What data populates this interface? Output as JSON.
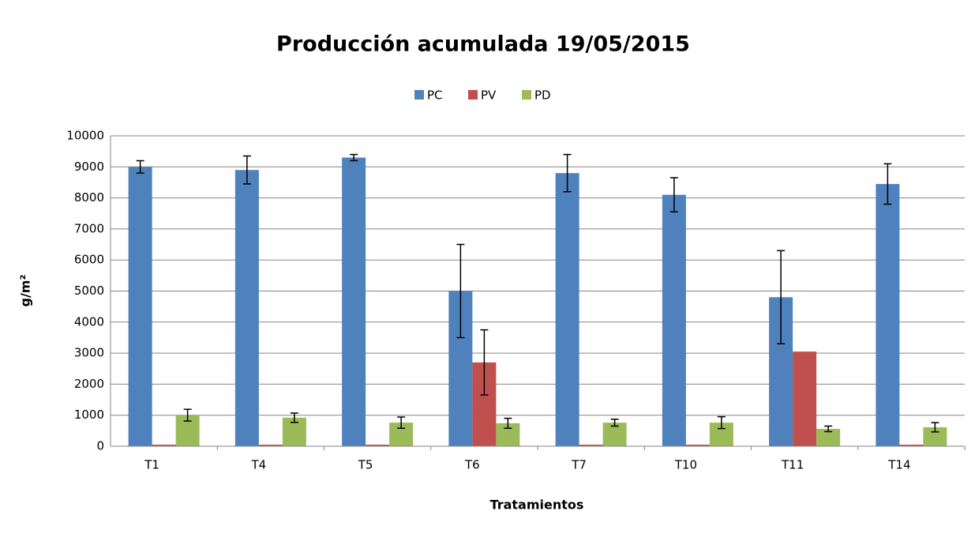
{
  "chart_data": {
    "type": "bar",
    "title": "Producción acumulada 19/05/2015",
    "x_label": "Tratamientos",
    "y_label": "g/m²",
    "categories": [
      "T1",
      "T4",
      "T5",
      "T6",
      "T7",
      "T10",
      "T11",
      "T14"
    ],
    "series": [
      {
        "name": "PC",
        "color": "#4f81bd",
        "values": [
          9000,
          8900,
          9300,
          5000,
          8800,
          8100,
          4800,
          8450
        ],
        "errors": [
          200,
          450,
          100,
          1500,
          600,
          550,
          1500,
          650
        ]
      },
      {
        "name": "PV",
        "color": "#c0504d",
        "values": [
          50,
          50,
          50,
          2700,
          50,
          50,
          3050,
          50
        ],
        "errors": [
          0,
          0,
          0,
          1050,
          0,
          0,
          0,
          0
        ]
      },
      {
        "name": "PD",
        "color": "#9bbb59",
        "values": [
          1000,
          920,
          760,
          740,
          760,
          760,
          560,
          610
        ],
        "errors": [
          190,
          150,
          180,
          160,
          110,
          190,
          90,
          150
        ]
      }
    ],
    "ylim": [
      0,
      10000
    ],
    "yticks": [
      0,
      1000,
      2000,
      3000,
      4000,
      5000,
      6000,
      7000,
      8000,
      9000,
      10000
    ],
    "grid": true,
    "legend": "top"
  }
}
